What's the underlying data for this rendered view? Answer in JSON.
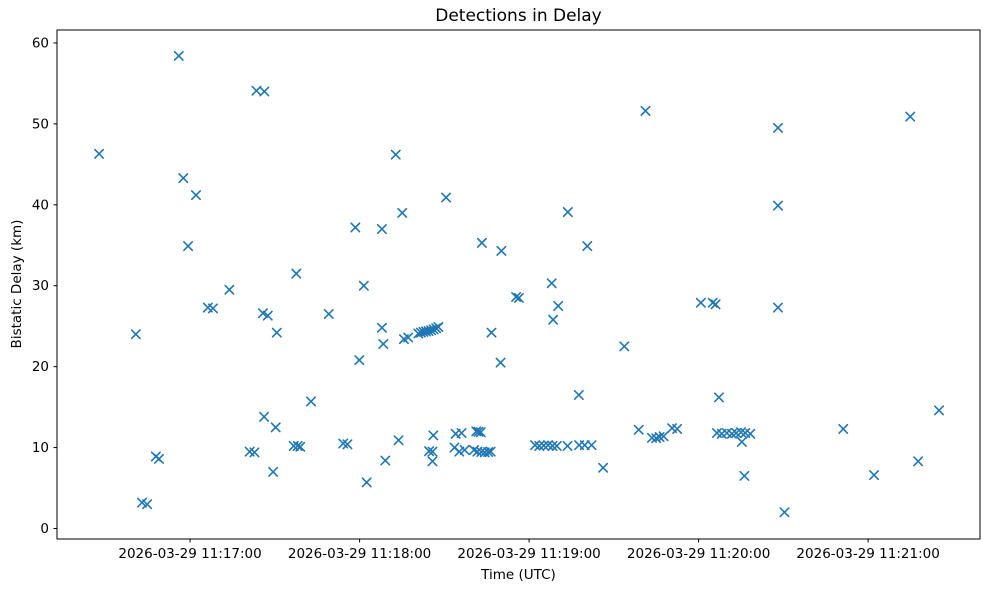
{
  "chart_data": {
    "type": "scatter",
    "title": "Detections in Delay",
    "xlabel": "Time (UTC)",
    "ylabel": "Bistatic Delay (km)",
    "marker": "x",
    "marker_color": "#1f77b4",
    "grid": false,
    "legend": "none",
    "x_axis": {
      "unit": "seconds since 2026-03-29 11:16:00 UTC",
      "range": [
        12.9,
        339.6
      ],
      "ticks": [
        {
          "t": 60,
          "label": "2026-03-29 11:17:00"
        },
        {
          "t": 120,
          "label": "2026-03-29 11:18:00"
        },
        {
          "t": 180,
          "label": "2026-03-29 11:19:00"
        },
        {
          "t": 240,
          "label": "2026-03-29 11:20:00"
        },
        {
          "t": 300,
          "label": "2026-03-29 11:21:00"
        }
      ]
    },
    "y_axis": {
      "range": [
        -1.3,
        61.6
      ],
      "ticks": [
        0,
        10,
        20,
        30,
        40,
        50,
        60
      ]
    },
    "points": [
      [
        56.0,
        58.4
      ],
      [
        83.5,
        54.1
      ],
      [
        86.3,
        54.0
      ],
      [
        27.8,
        46.3
      ],
      [
        57.6,
        43.3
      ],
      [
        62.1,
        41.2
      ],
      [
        59.3,
        34.9
      ],
      [
        132.8,
        46.2
      ],
      [
        150.6,
        40.9
      ],
      [
        135.1,
        39.0
      ],
      [
        118.5,
        37.2
      ],
      [
        127.9,
        37.0
      ],
      [
        163.3,
        35.3
      ],
      [
        170.2,
        34.3
      ],
      [
        97.6,
        31.5
      ],
      [
        221.2,
        51.6
      ],
      [
        193.7,
        39.1
      ],
      [
        200.6,
        34.9
      ],
      [
        268.1,
        49.5
      ],
      [
        314.9,
        50.9
      ],
      [
        268.1,
        39.9
      ],
      [
        73.9,
        29.5
      ],
      [
        66.3,
        27.3
      ],
      [
        68.1,
        27.2
      ],
      [
        85.8,
        26.6
      ],
      [
        87.5,
        26.3
      ],
      [
        90.7,
        24.2
      ],
      [
        40.8,
        24.0
      ],
      [
        86.2,
        13.8
      ],
      [
        90.3,
        12.5
      ],
      [
        81.1,
        9.5
      ],
      [
        82.8,
        9.4
      ],
      [
        89.4,
        7.0
      ],
      [
        47.9,
        8.9
      ],
      [
        49.0,
        8.6
      ],
      [
        43.0,
        3.2
      ],
      [
        44.8,
        3.0
      ],
      [
        121.5,
        30.0
      ],
      [
        109.1,
        26.5
      ],
      [
        127.9,
        24.8
      ],
      [
        135.7,
        23.4
      ],
      [
        137.2,
        23.6
      ],
      [
        140.8,
        24.1
      ],
      [
        141.7,
        24.2
      ],
      [
        142.6,
        24.3
      ],
      [
        143.5,
        24.35
      ],
      [
        144.4,
        24.4
      ],
      [
        145.3,
        24.5
      ],
      [
        146.2,
        24.6
      ],
      [
        147.1,
        24.75
      ],
      [
        147.9,
        24.9
      ],
      [
        166.7,
        24.2
      ],
      [
        128.4,
        22.8
      ],
      [
        119.9,
        20.8
      ],
      [
        169.9,
        20.5
      ],
      [
        102.8,
        15.7
      ],
      [
        133.8,
        10.9
      ],
      [
        146.1,
        11.5
      ],
      [
        154.0,
        11.7
      ],
      [
        156.1,
        11.8
      ],
      [
        161.3,
        12.0
      ],
      [
        162.1,
        11.95
      ],
      [
        162.9,
        11.9
      ],
      [
        96.7,
        10.2
      ],
      [
        98.1,
        10.2
      ],
      [
        99.0,
        10.1
      ],
      [
        114.2,
        10.5
      ],
      [
        115.7,
        10.4
      ],
      [
        144.6,
        9.55
      ],
      [
        145.8,
        9.5
      ],
      [
        153.6,
        10.0
      ],
      [
        155.3,
        9.5
      ],
      [
        157.2,
        9.7
      ],
      [
        160.5,
        9.7
      ],
      [
        161.7,
        9.5
      ],
      [
        163.1,
        9.45
      ],
      [
        164.3,
        9.4
      ],
      [
        165.5,
        9.45
      ],
      [
        166.4,
        9.5
      ],
      [
        145.8,
        8.3
      ],
      [
        129.1,
        8.4
      ],
      [
        122.5,
        5.7
      ],
      [
        188.0,
        30.3
      ],
      [
        175.4,
        28.6
      ],
      [
        176.4,
        28.5
      ],
      [
        190.3,
        27.5
      ],
      [
        188.5,
        25.8
      ],
      [
        240.8,
        27.9
      ],
      [
        245.0,
        27.9
      ],
      [
        246.0,
        27.7
      ],
      [
        213.7,
        22.5
      ],
      [
        197.6,
        16.5
      ],
      [
        247.2,
        16.2
      ],
      [
        218.8,
        12.2
      ],
      [
        223.5,
        11.2
      ],
      [
        225.0,
        11.15
      ],
      [
        226.2,
        11.3
      ],
      [
        227.6,
        11.4
      ],
      [
        230.6,
        12.4
      ],
      [
        232.4,
        12.3
      ],
      [
        182.1,
        10.3
      ],
      [
        183.6,
        10.2
      ],
      [
        185.2,
        10.25
      ],
      [
        186.7,
        10.3
      ],
      [
        188.3,
        10.2
      ],
      [
        189.8,
        10.2
      ],
      [
        193.6,
        10.2
      ],
      [
        197.7,
        10.3
      ],
      [
        199.7,
        10.3
      ],
      [
        202.1,
        10.3
      ],
      [
        206.2,
        7.5
      ],
      [
        246.5,
        11.8
      ],
      [
        248.2,
        11.7
      ],
      [
        250.0,
        11.8
      ],
      [
        251.8,
        11.7
      ],
      [
        253.3,
        11.8
      ],
      [
        255.0,
        11.9
      ],
      [
        256.5,
        11.8
      ],
      [
        258.3,
        11.7
      ],
      [
        255.3,
        10.7
      ],
      [
        256.2,
        6.5
      ],
      [
        268.1,
        27.3
      ],
      [
        325.1,
        14.6
      ],
      [
        291.2,
        12.3
      ],
      [
        317.7,
        8.3
      ],
      [
        302.1,
        6.6
      ],
      [
        270.4,
        2.0
      ]
    ]
  }
}
